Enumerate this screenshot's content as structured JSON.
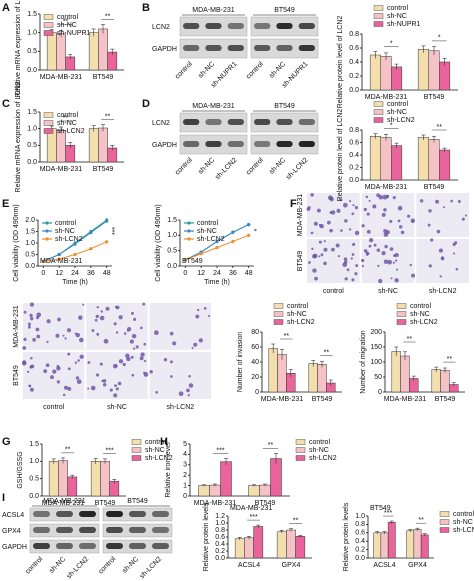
{
  "panel_labels": [
    "A",
    "B",
    "C",
    "D",
    "E",
    "F",
    "G",
    "H",
    "I"
  ],
  "blots": [
    {
      "groups": [
        "MDA-MB-231",
        "BT549"
      ],
      "rows": [
        "LCN2",
        "GAPDH"
      ],
      "lanes": [
        "control",
        "sh-NC",
        "sh-NUPR1"
      ]
    },
    {
      "groups": [
        "MDA-MB-231",
        "BT549"
      ],
      "rows": [
        "LCN2",
        "GAPDH"
      ],
      "lanes": [
        "control",
        "sh-NC",
        "sh-LCN2"
      ]
    },
    {
      "groups": [
        "MDA-MB-231",
        "BT549"
      ],
      "rows": [
        "ACSL4",
        "GPX4",
        "GAPDH"
      ],
      "lanes": [
        "control",
        "sh-NC",
        "sh-LCN2"
      ]
    }
  ],
  "micrographs": [
    {
      "rows": [
        "MDA-MB-231",
        "BT549"
      ],
      "columns": [
        "control",
        "sh-NC",
        "sh-LCN2"
      ]
    },
    {
      "rows": [
        "MDA-MB-231",
        "BT549"
      ],
      "columns": [
        "control",
        "sh-NC",
        "sh-LCN2"
      ]
    }
  ],
  "chart_data": [
    {
      "type": "bar",
      "ylabel": "Relative mRNA expression of LCN2",
      "categories": [
        "MDA-MB-231",
        "BT549"
      ],
      "legend": "upper left",
      "ylim": [
        0,
        1.5
      ],
      "yticks": [
        {
          "value": 0,
          "label": "0.0"
        },
        0.5,
        {
          "value": 1,
          "label": "1.0"
        },
        1.5
      ],
      "series": [
        {
          "name": "control",
          "color": "#f3dfae",
          "values": [
            1.0,
            1.0
          ],
          "errors": [
            0.08,
            0.1
          ]
        },
        {
          "name": "sh-NC",
          "color": "#f5c3c6",
          "values": [
            0.97,
            1.1
          ],
          "errors": [
            0.09,
            0.12
          ]
        },
        {
          "name": "sh-NUPR1",
          "color": "#e9649b",
          "values": [
            0.35,
            0.48
          ],
          "errors": [
            0.06,
            0.08
          ]
        }
      ],
      "annotations": [
        "**",
        "**"
      ]
    },
    {
      "type": "bar",
      "ylabel": "Relative protein level of LCN2",
      "categories": [
        "MDA-MB-231",
        "BT549"
      ],
      "legend": "above",
      "ylim": [
        0,
        0.8
      ],
      "yticks": [
        {
          "value": 0,
          "label": "0.0"
        },
        0.2,
        0.4,
        0.6,
        0.8
      ],
      "series": [
        {
          "name": "control",
          "color": "#f3dfae",
          "values": [
            0.5,
            0.58
          ],
          "errors": [
            0.05,
            0.05
          ]
        },
        {
          "name": "sh-NC",
          "color": "#f5c3c6",
          "values": [
            0.48,
            0.56
          ],
          "errors": [
            0.05,
            0.06
          ]
        },
        {
          "name": "sh-NUPR1",
          "color": "#e9649b",
          "values": [
            0.33,
            0.4
          ],
          "errors": [
            0.04,
            0.05
          ]
        }
      ],
      "annotations": [
        "*",
        "*"
      ]
    },
    {
      "type": "bar",
      "ylabel": "Relative mRNA expression of LCN2",
      "categories": [
        "MDA-MB-231",
        "BT549"
      ],
      "legend": "upper left",
      "ylim": [
        0,
        1.5
      ],
      "yticks": [
        {
          "value": 0,
          "label": "0.0"
        },
        0.5,
        {
          "value": 1,
          "label": "1.0"
        },
        1.5
      ],
      "series": [
        {
          "name": "control",
          "color": "#f3dfae",
          "values": [
            1.0,
            1.0
          ],
          "errors": [
            0.08,
            0.09
          ]
        },
        {
          "name": "sh-NC",
          "color": "#f5c3c6",
          "values": [
            0.95,
            1.02
          ],
          "errors": [
            0.1,
            0.1
          ]
        },
        {
          "name": "sh-LCN2",
          "color": "#e9649b",
          "values": [
            0.5,
            0.42
          ],
          "errors": [
            0.09,
            0.08
          ]
        }
      ],
      "annotations": [
        "**",
        "**"
      ]
    },
    {
      "type": "bar",
      "ylabel": "Relative protein level of LCN2",
      "categories": [
        "MDA-MB-231",
        "BT549"
      ],
      "legend": "above",
      "ylim": [
        0,
        0.8
      ],
      "yticks": [
        {
          "value": 0,
          "label": "0.0"
        },
        0.2,
        0.4,
        0.6,
        0.8
      ],
      "series": [
        {
          "name": "control",
          "color": "#f3dfae",
          "values": [
            0.7,
            0.68
          ],
          "errors": [
            0.04,
            0.04
          ]
        },
        {
          "name": "sh-NC",
          "color": "#f5c3c6",
          "values": [
            0.68,
            0.65
          ],
          "errors": [
            0.05,
            0.05
          ]
        },
        {
          "name": "sh-LCN2",
          "color": "#e9649b",
          "values": [
            0.55,
            0.48
          ],
          "errors": [
            0.04,
            0.03
          ]
        }
      ],
      "annotations": [
        "*",
        "**"
      ]
    },
    {
      "type": "line",
      "ylabel": "Cell viability (OD 490nm)",
      "xlabel": "Time (h)",
      "subtitle": "MDA-MB-231",
      "legend": "upper left",
      "x": [
        0,
        12,
        24,
        36,
        48
      ],
      "xlim": [
        -4,
        52
      ],
      "xticks": [
        0,
        12,
        24,
        36,
        48
      ],
      "ylim": [
        0,
        2
      ],
      "yticks": [
        {
          "value": 0,
          "label": "0.0"
        },
        0.5,
        {
          "value": 1,
          "label": "1.0"
        },
        1.5,
        {
          "value": 2,
          "label": "2.0"
        }
      ],
      "series": [
        {
          "name": "control",
          "color": "#2a9d8f",
          "values": [
            0.2,
            0.5,
            1.0,
            1.5,
            2.0
          ]
        },
        {
          "name": "sh-NC",
          "color": "#3a86c8",
          "values": [
            0.2,
            0.5,
            0.95,
            1.45,
            1.95
          ]
        },
        {
          "name": "sh-LCN2",
          "color": "#f08c2a",
          "values": [
            0.2,
            0.3,
            0.5,
            0.75,
            1.05
          ]
        }
      ],
      "annotations": [
        "***"
      ]
    },
    {
      "type": "line",
      "ylabel": "Cell viability (OD 490nm)",
      "xlabel": "Time (h)",
      "subtitle": "BT549",
      "legend": "upper left",
      "x": [
        0,
        12,
        24,
        36,
        48
      ],
      "xlim": [
        -4,
        52
      ],
      "xticks": [
        0,
        12,
        24,
        36,
        48
      ],
      "ylim": [
        0,
        1.5
      ],
      "yticks": [
        {
          "value": 0,
          "label": "0.0"
        },
        0.5,
        {
          "value": 1,
          "label": "1.0"
        },
        1.5
      ],
      "series": [
        {
          "name": "control",
          "color": "#2a9d8f",
          "values": [
            0.2,
            0.45,
            0.8,
            1.1,
            1.35
          ]
        },
        {
          "name": "sh-NC",
          "color": "#3a86c8",
          "values": [
            0.2,
            0.45,
            0.8,
            1.1,
            1.35
          ]
        },
        {
          "name": "sh-LCN2",
          "color": "#f08c2a",
          "values": [
            0.2,
            0.4,
            0.6,
            0.8,
            1.0
          ]
        }
      ],
      "annotations": [
        "*"
      ]
    },
    {
      "type": "bar",
      "ylabel": "Number of invasion",
      "categories": [
        "MDA-MB-231",
        "BT549"
      ],
      "legend": "above",
      "ylim": [
        0,
        80
      ],
      "yticks": [
        0,
        20,
        40,
        60,
        80
      ],
      "series": [
        {
          "name": "control",
          "color": "#f3dfae",
          "values": [
            58,
            38
          ],
          "errors": [
            6,
            4
          ]
        },
        {
          "name": "sh-NC",
          "color": "#f5c3c6",
          "values": [
            50,
            37
          ],
          "errors": [
            7,
            4
          ]
        },
        {
          "name": "sh-LCN2",
          "color": "#e9649b",
          "values": [
            25,
            12
          ],
          "errors": [
            5,
            4
          ]
        }
      ],
      "annotations": [
        "**",
        "**"
      ]
    },
    {
      "type": "bar",
      "ylabel": "Number of migration",
      "categories": [
        "MDA-MB-231",
        "BT549"
      ],
      "legend": "above",
      "ylim": [
        0,
        200
      ],
      "yticks": [
        0,
        50,
        100,
        150,
        200
      ],
      "series": [
        {
          "name": "control",
          "color": "#f3dfae",
          "values": [
            135,
            75
          ],
          "errors": [
            15,
            8
          ]
        },
        {
          "name": "sh-NC",
          "color": "#f5c3c6",
          "values": [
            120,
            72
          ],
          "errors": [
            14,
            8
          ]
        },
        {
          "name": "sh-LCN2",
          "color": "#e9649b",
          "values": [
            45,
            25
          ],
          "errors": [
            8,
            6
          ]
        }
      ],
      "annotations": [
        "**",
        "**"
      ]
    },
    {
      "type": "bar",
      "ylabel": "GSH/GSSG",
      "categories": [
        "MDA-MB-231",
        "BT549"
      ],
      "legend": "outside right",
      "ylim": [
        0,
        1.5
      ],
      "yticks": [
        {
          "value": 0,
          "label": "0.0"
        },
        0.5,
        {
          "value": 1,
          "label": "1.0"
        },
        1.5
      ],
      "series": [
        {
          "name": "control",
          "color": "#f3dfae",
          "values": [
            1.0,
            1.0
          ],
          "errors": [
            0.07,
            0.08
          ]
        },
        {
          "name": "sh-NC",
          "color": "#f5c3c6",
          "values": [
            1.02,
            1.0
          ],
          "errors": [
            0.08,
            0.07
          ]
        },
        {
          "name": "sh-LCN2",
          "color": "#e9649b",
          "values": [
            0.55,
            0.42
          ],
          "errors": [
            0.05,
            0.06
          ]
        }
      ],
      "annotations": [
        "**",
        "***"
      ]
    },
    {
      "type": "bar",
      "ylabel": "Relative iron level",
      "categories": [
        "MDA-MB-231",
        "BT549"
      ],
      "legend": "outside right",
      "ylim": [
        0,
        5
      ],
      "yticks": [
        0,
        1,
        2,
        3,
        4,
        5
      ],
      "series": [
        {
          "name": "control",
          "color": "#f3dfae",
          "values": [
            1.0,
            1.0
          ],
          "errors": [
            0.08,
            0.08
          ]
        },
        {
          "name": "sh-NC",
          "color": "#f5c3c6",
          "values": [
            1.05,
            1.05
          ],
          "errors": [
            0.1,
            0.1
          ]
        },
        {
          "name": "sh-LCN2",
          "color": "#e9649b",
          "values": [
            3.3,
            3.6
          ],
          "errors": [
            0.3,
            0.5
          ]
        }
      ],
      "annotations": [
        "***",
        "**"
      ]
    },
    {
      "type": "bar",
      "title": "MDA-MB-231",
      "ylabel": "Relative protein levels",
      "categories": [
        "ACSL4",
        "GPX4"
      ],
      "ylim": [
        0,
        1.2
      ],
      "yticks": [
        {
          "value": 0,
          "label": "0.0"
        },
        0.2,
        0.4,
        0.6,
        0.8,
        {
          "value": 1,
          "label": "1.0"
        },
        1.2
      ],
      "series": [
        {
          "color": "#f3dfae",
          "values": [
            0.55,
            0.75
          ],
          "errors": [
            0.04,
            0.04
          ]
        },
        {
          "color": "#f5c3c6",
          "values": [
            0.58,
            0.8
          ],
          "errors": [
            0.04,
            0.04
          ]
        },
        {
          "color": "#e9649b",
          "values": [
            0.9,
            0.62
          ],
          "errors": [
            0.04,
            0.03
          ]
        }
      ],
      "annotations": [
        "***",
        "**"
      ]
    },
    {
      "type": "bar",
      "title": "BT549",
      "ylabel": "Relative protein levels",
      "categories": [
        "ACSL4",
        "GPX4"
      ],
      "legend": "outside right",
      "ylim": [
        0,
        1
      ],
      "yticks": [
        {
          "value": 0,
          "label": "0.0"
        },
        0.2,
        0.4,
        0.6,
        0.8,
        {
          "value": 1,
          "label": "1.0"
        }
      ],
      "series": [
        {
          "name": "control",
          "color": "#f3dfae",
          "values": [
            0.6,
            0.65
          ],
          "errors": [
            0.03,
            0.03
          ]
        },
        {
          "name": "sh-NC",
          "color": "#f5c3c6",
          "values": [
            0.6,
            0.68
          ],
          "errors": [
            0.03,
            0.03
          ]
        },
        {
          "name": "sh-LCN2",
          "color": "#e9649b",
          "values": [
            0.85,
            0.55
          ],
          "errors": [
            0.03,
            0.03
          ]
        }
      ],
      "annotations": [
        "***",
        "**"
      ]
    }
  ]
}
